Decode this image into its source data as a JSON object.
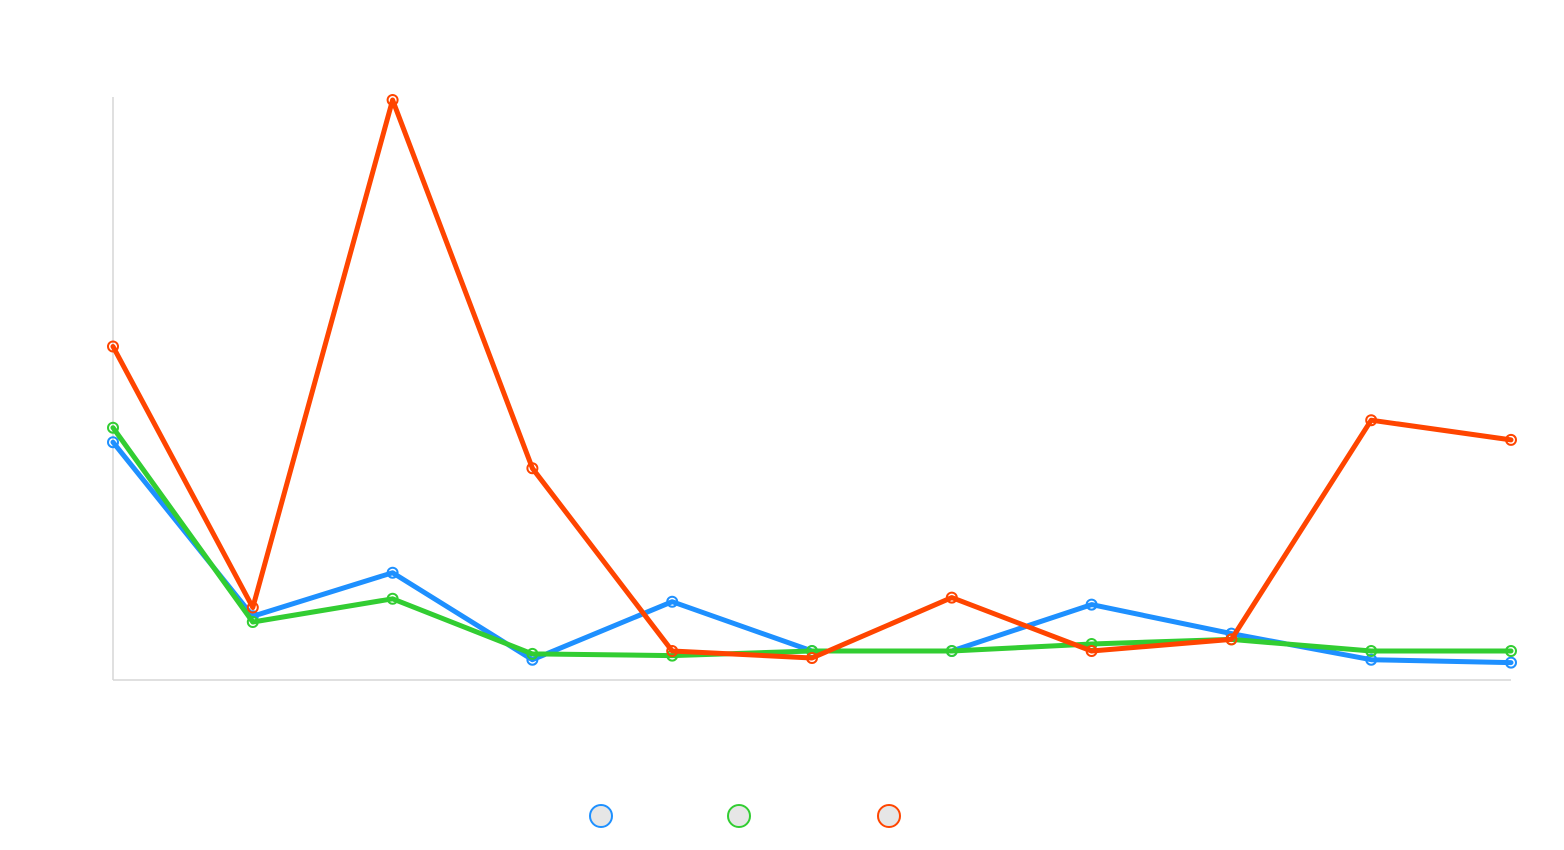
{
  "chart_data": {
    "type": "line",
    "x": [
      1,
      2,
      3,
      4,
      5,
      6,
      7,
      8,
      9,
      10,
      11
    ],
    "ylim": [
      0,
      100
    ],
    "grid": false,
    "legend_position": "bottom",
    "series": [
      {
        "color": "#1e90ff",
        "values": [
          41,
          11,
          18.5,
          3.5,
          13.5,
          5,
          5,
          13,
          8,
          3.5,
          3
        ]
      },
      {
        "color": "#32cd32",
        "values": [
          43.5,
          10,
          14,
          4.5,
          4.2,
          5,
          5,
          6.2,
          7,
          5,
          5
        ]
      },
      {
        "color": "#ff4500",
        "values": [
          57.5,
          12.5,
          100,
          36.5,
          5,
          3.8,
          14.2,
          5,
          7,
          44.8,
          41.4
        ]
      }
    ]
  }
}
